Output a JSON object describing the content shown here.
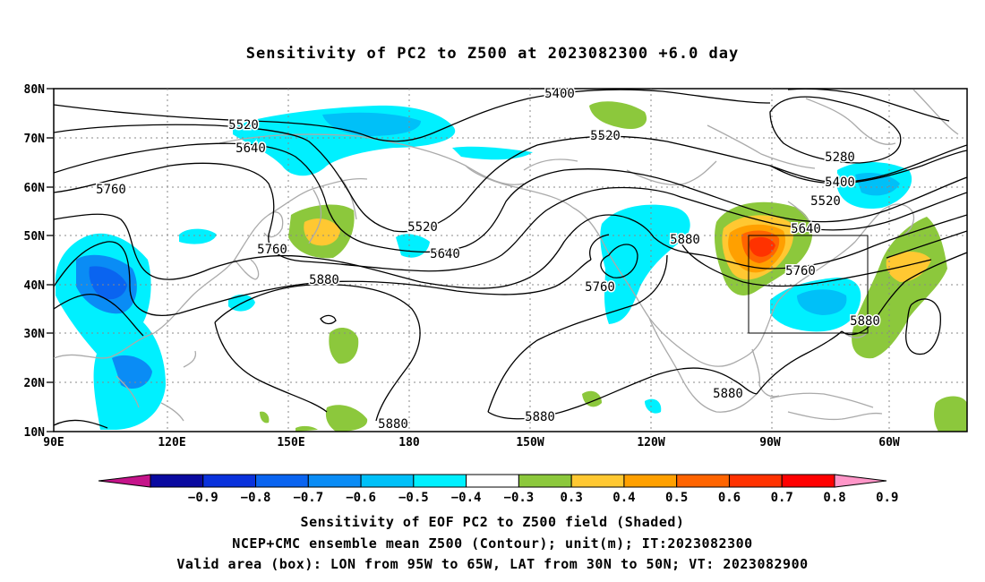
{
  "title": "Sensitivity of PC2 to Z500 at 2023082300 +6.0 day",
  "lat_labels": [
    "80N",
    "70N",
    "60N",
    "50N",
    "40N",
    "30N",
    "20N",
    "10N"
  ],
  "lon_labels": [
    "90E",
    "120E",
    "150E",
    "180",
    "150W",
    "120W",
    "90W",
    "60W"
  ],
  "contour_labels": [
    {
      "text": "5400"
    },
    {
      "text": "5520"
    },
    {
      "text": "5640"
    },
    {
      "text": "5520"
    },
    {
      "text": "5760"
    },
    {
      "text": "5280"
    },
    {
      "text": "5400"
    },
    {
      "text": "5520"
    },
    {
      "text": "5520"
    },
    {
      "text": "5640"
    },
    {
      "text": "5640"
    },
    {
      "text": "5760"
    },
    {
      "text": "5880"
    },
    {
      "text": "5880"
    },
    {
      "text": "5760"
    },
    {
      "text": "5760"
    },
    {
      "text": "5880"
    },
    {
      "text": "5880"
    },
    {
      "text": "5880"
    },
    {
      "text": "5880"
    }
  ],
  "colorbar": {
    "colors": [
      "#c5148a",
      "#0a0aa0",
      "#0a32dc",
      "#0a64f0",
      "#0a8cf5",
      "#00c0f8",
      "#00f0ff",
      "#ffffff",
      "#8cc83c",
      "#ffc832",
      "#ffa000",
      "#ff6400",
      "#ff3200",
      "#ff0000",
      "#ff96c8"
    ],
    "labels": [
      "−0.9",
      "−0.8",
      "−0.7",
      "−0.6",
      "−0.5",
      "−0.4",
      "−0.3",
      "0.3",
      "0.4",
      "0.5",
      "0.6",
      "0.7",
      "0.8",
      "0.9"
    ]
  },
  "valid_box": {
    "lon_west": "95W",
    "lon_east": "65W",
    "lat_south": "30N",
    "lat_north": "50N"
  },
  "captions": [
    "Sensitivity of EOF PC2 to Z500 field (Shaded)",
    "NCEP+CMC ensemble mean Z500 (Contour); unit(m); IT:2023082300",
    "Valid area (box): LON from 95W to 65W, LAT from 30N to 50N; VT: 2023082900"
  ]
}
